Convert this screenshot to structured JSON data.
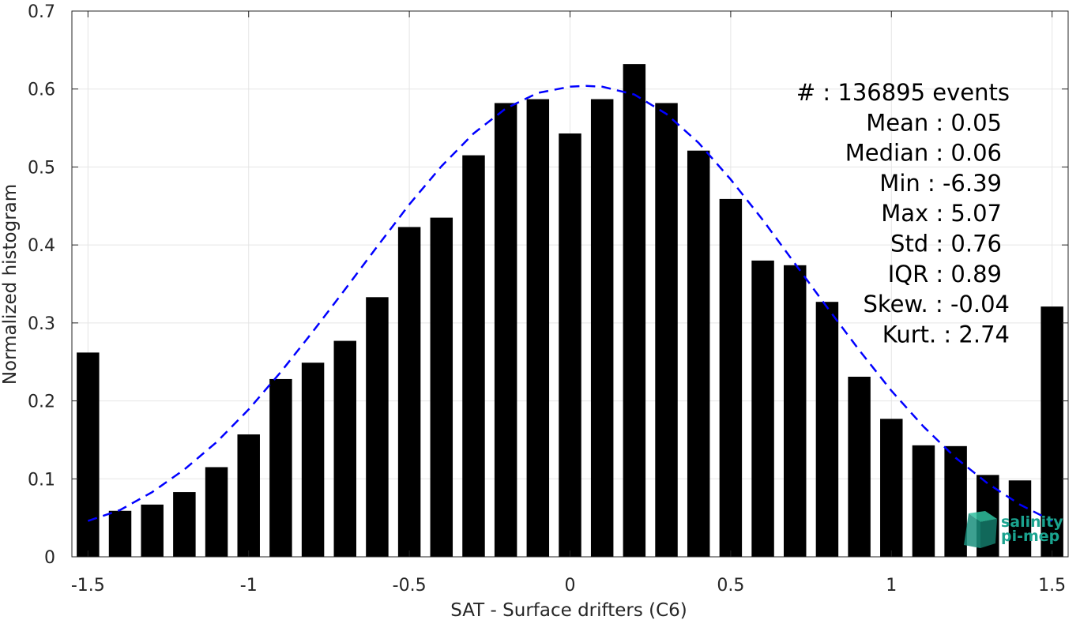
{
  "chart_data": {
    "type": "bar",
    "xlabel": "SAT - Surface drifters (C6)",
    "ylabel": "Normalized histogram",
    "xlim": [
      -1.55,
      1.55
    ],
    "ylim": [
      0,
      0.7
    ],
    "xticks": [
      -1.5,
      -1,
      -0.5,
      0,
      0.5,
      1,
      1.5
    ],
    "xtick_labels": [
      "-1.5",
      "-1",
      "-0.5",
      "0",
      "0.5",
      "1",
      "1.5"
    ],
    "yticks": [
      0,
      0.1,
      0.2,
      0.3,
      0.4,
      0.5,
      0.6,
      0.7
    ],
    "ytick_labels": [
      "0",
      "0.1",
      "0.2",
      "0.3",
      "0.4",
      "0.5",
      "0.6",
      "0.7"
    ],
    "grid": true,
    "bar_color": "#000000",
    "fit_color": "#0000ff",
    "bars": {
      "x": [
        -1.5,
        -1.4,
        -1.3,
        -1.2,
        -1.1,
        -1.0,
        -0.9,
        -0.8,
        -0.7,
        -0.6,
        -0.5,
        -0.4,
        -0.3,
        -0.2,
        -0.1,
        0.0,
        0.1,
        0.2,
        0.3,
        0.4,
        0.5,
        0.6,
        0.7,
        0.8,
        0.9,
        1.0,
        1.1,
        1.2,
        1.3,
        1.4,
        1.5
      ],
      "values": [
        0.262,
        0.059,
        0.067,
        0.083,
        0.115,
        0.157,
        0.228,
        0.249,
        0.277,
        0.333,
        0.423,
        0.435,
        0.515,
        0.582,
        0.587,
        0.543,
        0.587,
        0.632,
        0.582,
        0.521,
        0.459,
        0.38,
        0.374,
        0.327,
        0.231,
        0.177,
        0.143,
        0.142,
        0.105,
        0.098,
        0.321
      ]
    },
    "fit": {
      "style": "dashed",
      "x": [
        -1.5,
        -1.4,
        -1.3,
        -1.2,
        -1.1,
        -1.0,
        -0.9,
        -0.8,
        -0.7,
        -0.6,
        -0.5,
        -0.4,
        -0.3,
        -0.2,
        -0.1,
        0.0,
        0.05,
        0.1,
        0.2,
        0.3,
        0.4,
        0.5,
        0.6,
        0.7,
        0.8,
        0.9,
        1.0,
        1.1,
        1.2,
        1.3,
        1.4,
        1.5
      ],
      "y": [
        0.046,
        0.06,
        0.083,
        0.112,
        0.147,
        0.189,
        0.237,
        0.289,
        0.343,
        0.398,
        0.452,
        0.501,
        0.543,
        0.575,
        0.595,
        0.603,
        0.604,
        0.603,
        0.593,
        0.568,
        0.531,
        0.484,
        0.432,
        0.376,
        0.32,
        0.265,
        0.213,
        0.167,
        0.127,
        0.094,
        0.067,
        0.046
      ]
    },
    "annotations": [
      "#  : 136895 events",
      "Mean : 0.05",
      "Median : 0.06",
      "Min : -6.39",
      "Max : 5.07",
      "Std : 0.76",
      "IQR : 0.89",
      "Skew. : -0.04",
      "Kurt. : 2.74"
    ]
  },
  "logo": {
    "line1": "salinity",
    "line2": "pi-mep"
  }
}
